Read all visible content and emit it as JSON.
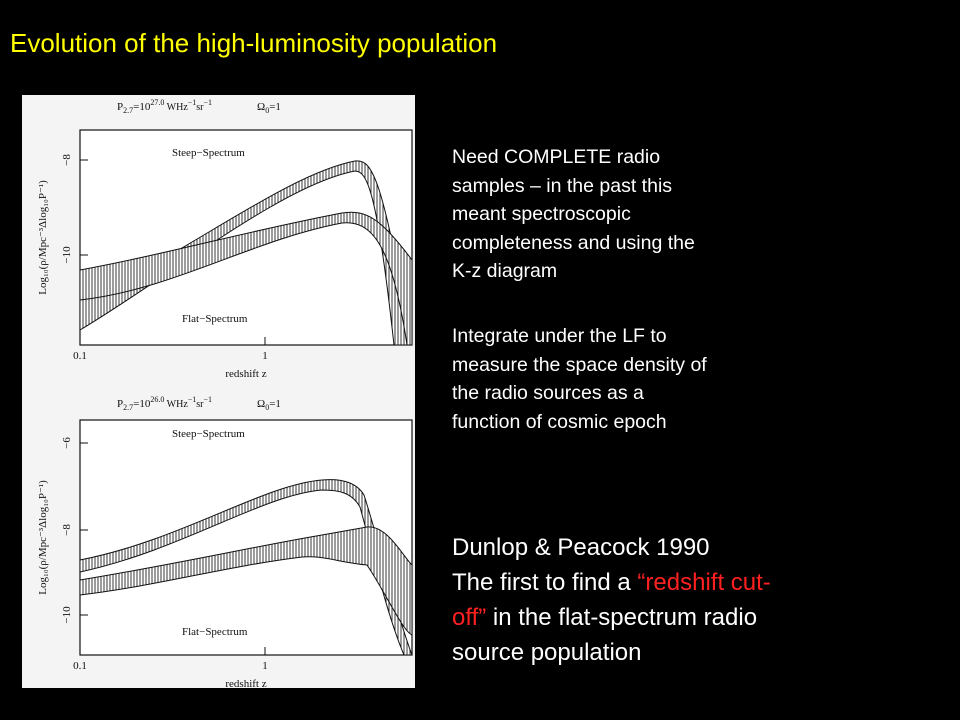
{
  "slide": {
    "title": "Evolution of the high-luminosity population",
    "figure": {
      "panels": [
        {
          "header": {
            "p": "P",
            "p_sub": "2.7",
            "eq": "=10",
            "exp": "27.0",
            "unit1": " WHz",
            "unit1_exp": "−1",
            "unit2": "sr",
            "unit2_exp": "−1",
            "omega": "Ω",
            "omega_sub": "0",
            "omega_eq": "=1"
          },
          "y_label": "Log₁₀(ρ/Mpc⁻³Δlog₁₀P⁻¹)",
          "y_ticks": [
            "−8",
            "−10"
          ],
          "x_ticks": [
            "0.1",
            "1"
          ],
          "x_label": "redshift z",
          "labels": [
            "Steep−Spectrum",
            "Flat−Spectrum"
          ]
        },
        {
          "header": {
            "p": "P",
            "p_sub": "2.7",
            "eq": "=10",
            "exp": "26.0",
            "unit1": " WHz",
            "unit1_exp": "−1",
            "unit2": "sr",
            "unit2_exp": "−1",
            "omega": "Ω",
            "omega_sub": "0",
            "omega_eq": "=1"
          },
          "y_label": "Log₁₀(ρ/Mpc⁻³Δlog₁₀P⁻¹)",
          "y_ticks": [
            "−6",
            "−8",
            "−10"
          ],
          "x_ticks": [
            "0.1",
            "1"
          ],
          "x_label": "redshift z",
          "labels": [
            "Steep−Spectrum",
            "Flat−Spectrum"
          ]
        }
      ]
    },
    "paragraphs": [
      [
        "Need COMPLETE radio",
        "samples – in the past this",
        "meant spectroscopic",
        "completeness and using the",
        "K-z diagram"
      ],
      [
        "Integrate under the LF to",
        "measure the space density of",
        "the radio sources as a",
        "function of cosmic epoch"
      ]
    ],
    "citation": {
      "line1": "Dunlop & Peacock 1990",
      "line2": "The first to find a ",
      "line2_red": "“redshift cut-",
      "line3_red": "off”",
      "line3": " in the flat-spectrum radio",
      "line4": "source population"
    }
  }
}
